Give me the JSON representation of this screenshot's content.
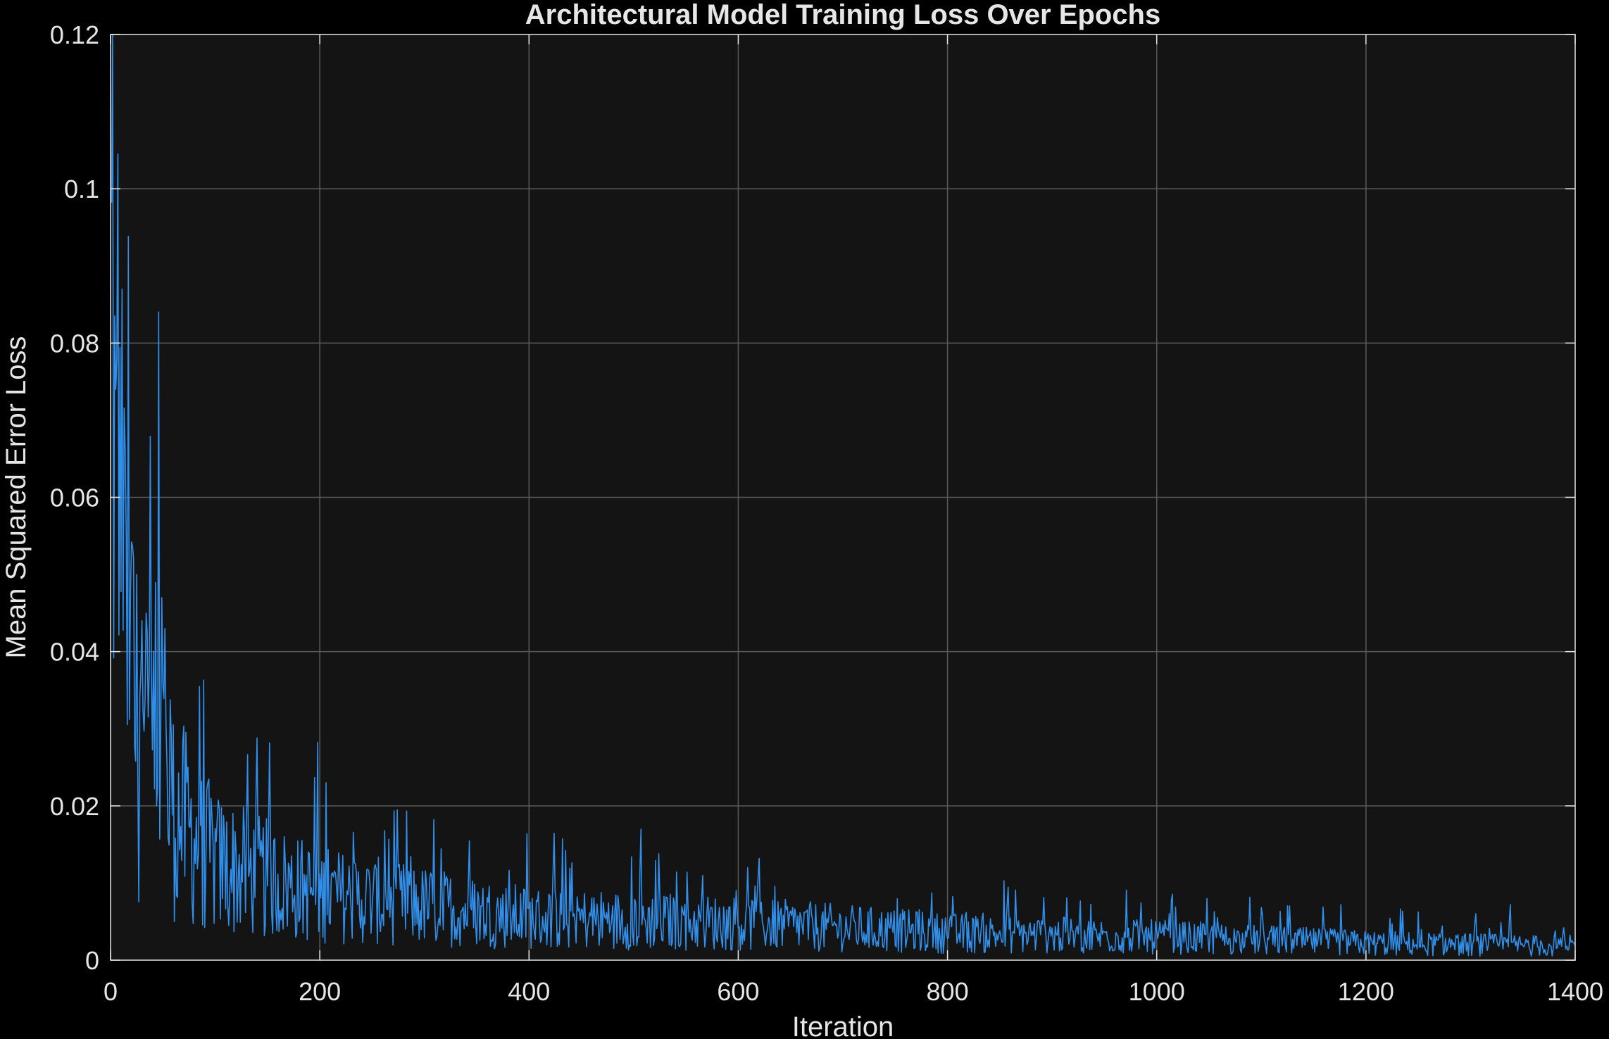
{
  "chart_data": {
    "type": "line",
    "title": "Architectural Model Training Loss Over Epochs",
    "xlabel": "Iteration",
    "ylabel": "Mean Squared Error Loss",
    "xlim": [
      0,
      1400
    ],
    "ylim": [
      0,
      0.12
    ],
    "x_ticks": [
      0,
      200,
      400,
      600,
      800,
      1000,
      1200,
      1400
    ],
    "x_tick_labels": [
      "0",
      "200",
      "400",
      "600",
      "800",
      "1000",
      "1200",
      "1400"
    ],
    "y_ticks": [
      0,
      0.02,
      0.04,
      0.06,
      0.08,
      0.1,
      0.12
    ],
    "y_tick_labels": [
      "0",
      "0.02",
      "0.04",
      "0.06",
      "0.08",
      "0.1",
      "0.12"
    ],
    "grid": true,
    "legend": "none",
    "series": [
      {
        "color": "#2f8fea",
        "x_start": 1,
        "x_step": 1,
        "count": 1400,
        "trend_points": [
          [
            0,
            0.06
          ],
          [
            10,
            0.05
          ],
          [
            25,
            0.03
          ],
          [
            50,
            0.021
          ],
          [
            100,
            0.0125
          ],
          [
            200,
            0.0085
          ],
          [
            400,
            0.0055
          ],
          [
            600,
            0.0048
          ],
          [
            800,
            0.0035
          ],
          [
            1000,
            0.003
          ],
          [
            1200,
            0.0022
          ],
          [
            1400,
            0.0018
          ]
        ],
        "peaks": [
          [
            7,
            0.1045
          ],
          [
            11,
            0.087
          ],
          [
            5,
            0.074
          ],
          [
            15,
            0.055
          ],
          [
            19,
            0.047
          ],
          [
            49,
            0.047
          ],
          [
            52,
            0.043
          ],
          [
            30,
            0.044
          ],
          [
            206,
            0.023
          ],
          [
            262,
            0.0168
          ],
          [
            524,
            0.0138
          ],
          [
            1176,
            0.0072
          ],
          [
            1338,
            0.0072
          ]
        ]
      }
    ]
  }
}
